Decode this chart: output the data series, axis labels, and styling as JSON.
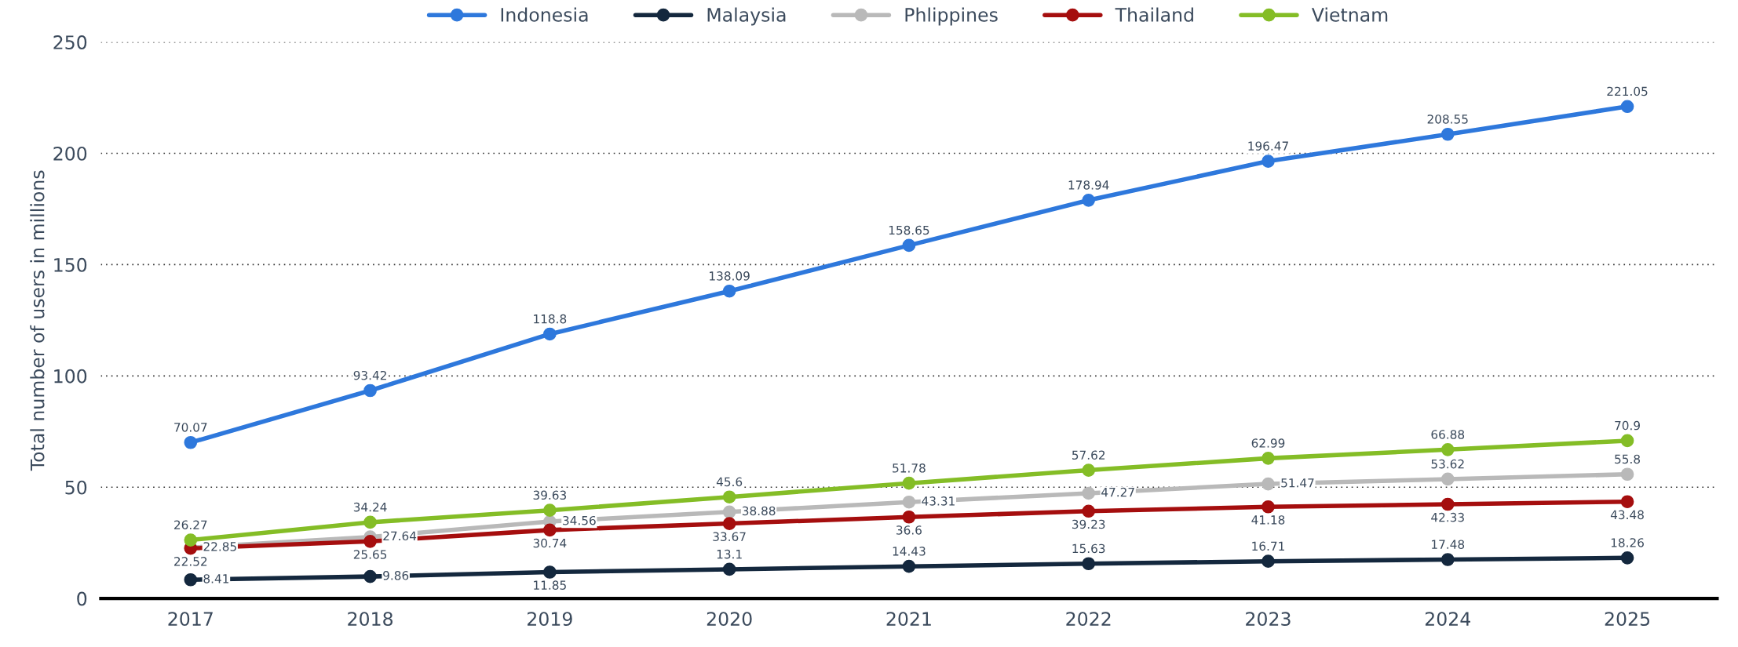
{
  "chart_data": {
    "type": "line",
    "ylabel": "Total number of users in millions",
    "categories": [
      "2017",
      "2018",
      "2019",
      "2020",
      "2021",
      "2022",
      "2023",
      "2024",
      "2025"
    ],
    "series": [
      {
        "name": "Indonesia",
        "color": "#2e78dc",
        "values": [
          70.07,
          93.42,
          118.8,
          138.09,
          158.65,
          178.94,
          196.47,
          208.55,
          221.05
        ]
      },
      {
        "name": "Malaysia",
        "color": "#14283e",
        "values": [
          8.41,
          9.86,
          11.85,
          13.1,
          14.43,
          15.63,
          16.71,
          17.48,
          18.26
        ]
      },
      {
        "name": "Phlippines",
        "color": "#b9b9b9",
        "values": [
          22.85,
          27.64,
          34.56,
          38.88,
          43.31,
          47.27,
          51.47,
          53.62,
          55.8
        ]
      },
      {
        "name": "Thailand",
        "color": "#a50e0e",
        "values": [
          22.52,
          25.65,
          30.74,
          33.67,
          36.6,
          39.23,
          41.18,
          42.33,
          43.48
        ]
      },
      {
        "name": "Vietnam",
        "color": "#84bd26",
        "values": [
          26.27,
          34.24,
          39.63,
          45.6,
          51.78,
          57.62,
          62.99,
          66.88,
          70.9
        ]
      }
    ],
    "ylim": [
      0,
      250
    ],
    "yticks": [
      0,
      50,
      100,
      150,
      200,
      250
    ],
    "grid": "y",
    "legend": "top",
    "marker": "circle",
    "line_style": "solid",
    "data_labels": true
  }
}
